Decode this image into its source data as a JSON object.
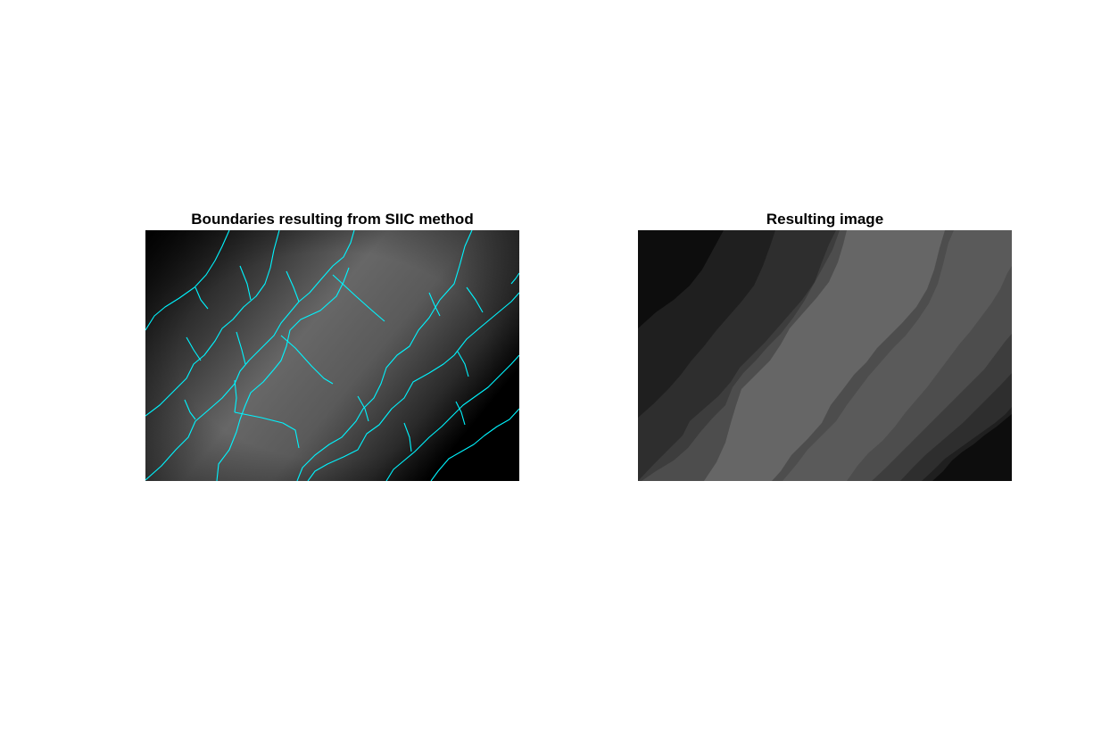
{
  "figure": {
    "left_panel": {
      "title": "Boundaries resulting from SIIC method",
      "boundary_color": "#00f5ff",
      "background": "radial gray gradient (light center band, dark corners)"
    },
    "right_panel": {
      "title": "Resulting image",
      "segment_gray_levels": [
        "#0d0d0d",
        "#1f1f1f",
        "#2e2e2e",
        "#3d3d3d",
        "#4d4d4d",
        "#5a5a5a",
        "#666666"
      ]
    }
  }
}
